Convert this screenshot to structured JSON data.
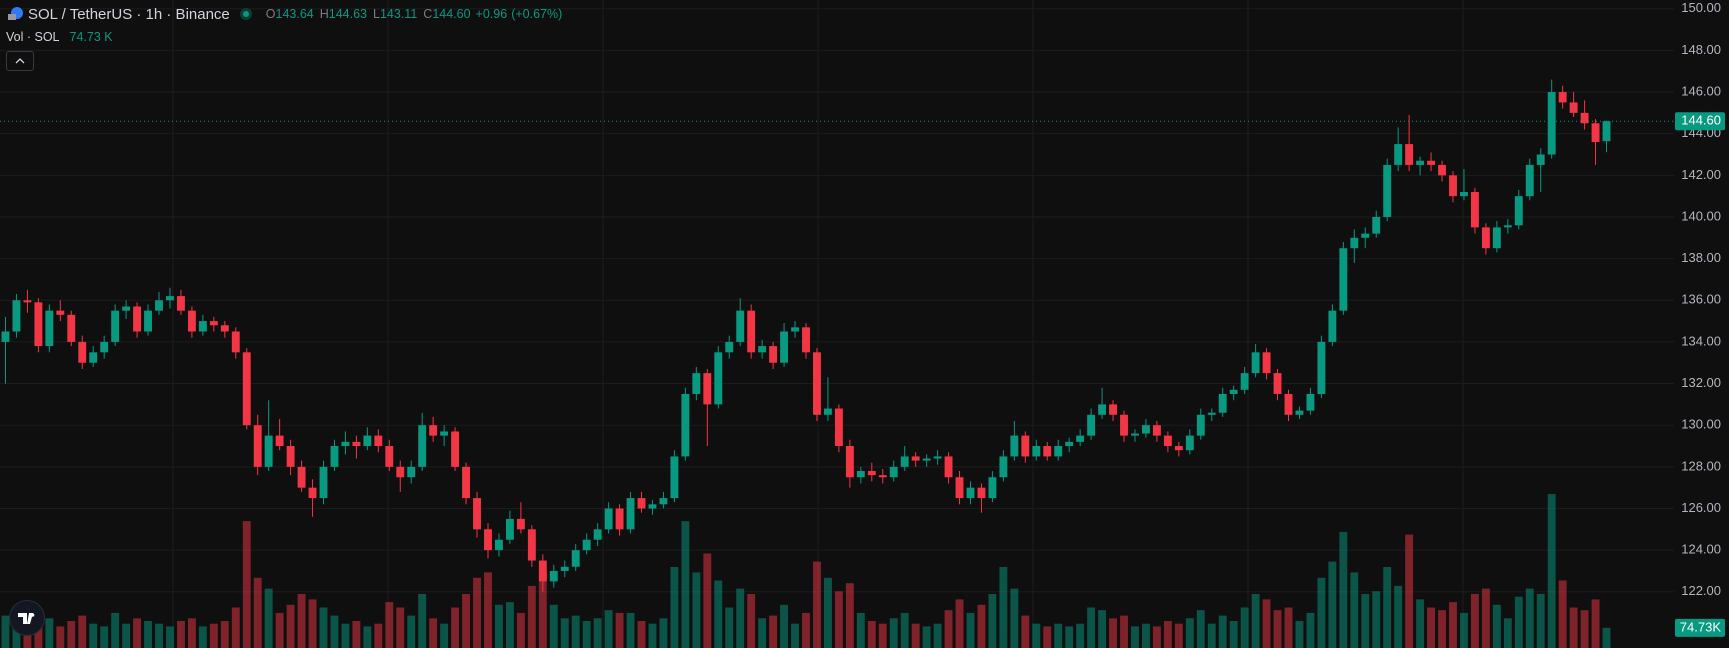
{
  "chart_data": {
    "type": "candlestick",
    "title": "SOL / TetherUS · 1h · Binance",
    "ohlc_legend": [
      {
        "label": "O",
        "value": 143.64
      },
      {
        "label": "H",
        "value": 144.63
      },
      {
        "label": "L",
        "value": 143.11
      },
      {
        "label": "C",
        "value": 144.6,
        "value_label": "144.60"
      }
    ],
    "change": {
      "value": 0.96,
      "label": "+0.96"
    },
    "change_pct": {
      "value": 0.67,
      "label": "(+0.67%)"
    },
    "volume_title": "Vol · SOL",
    "last_volume": {
      "value": 74730,
      "label": "74.73 K",
      "axis_label": "74.73K"
    },
    "last_price": {
      "value": 144.6,
      "label": "144.60"
    },
    "up_color": "#089981",
    "down_color": "#f23645",
    "grid": true,
    "ylim": [
      119.3,
      150.42
    ],
    "yticks": [
      {
        "value": 122,
        "label": "122.00"
      },
      {
        "value": 124,
        "label": "124.00"
      },
      {
        "value": 126,
        "label": "126.00"
      },
      {
        "value": 128,
        "label": "128.00"
      },
      {
        "value": 130,
        "label": "130.00"
      },
      {
        "value": 132,
        "label": "132.00"
      },
      {
        "value": 134,
        "label": "134.00"
      },
      {
        "value": 136,
        "label": "136.00"
      },
      {
        "value": 138,
        "label": "138.00"
      },
      {
        "value": 140,
        "label": "140.00"
      },
      {
        "value": 142,
        "label": "142.00"
      },
      {
        "value": 144,
        "label": "144.00"
      },
      {
        "value": 146,
        "label": "146.00"
      },
      {
        "value": 148,
        "label": "148.00"
      },
      {
        "value": 150,
        "label": "150.00"
      }
    ],
    "volume_lim": [
      0,
      2400000
    ],
    "candles": [
      [
        134,
        135.2,
        132,
        134.5,
        120000
      ],
      [
        134.5,
        136.3,
        134.2,
        136,
        150000
      ],
      [
        136,
        136.5,
        135.4,
        135.9,
        90000
      ],
      [
        135.9,
        136.1,
        133.5,
        133.8,
        130000
      ],
      [
        133.8,
        135.8,
        133.5,
        135.5,
        110000
      ],
      [
        135.5,
        136,
        135,
        135.3,
        80000
      ],
      [
        135.3,
        135.5,
        133.8,
        134,
        100000
      ],
      [
        134,
        134.3,
        132.7,
        133,
        120000
      ],
      [
        133,
        133.8,
        132.8,
        133.5,
        90000
      ],
      [
        133.5,
        134.3,
        133.2,
        134,
        80000
      ],
      [
        134,
        135.8,
        133.8,
        135.5,
        130000
      ],
      [
        135.5,
        136,
        135.1,
        135.7,
        90000
      ],
      [
        135.7,
        135.9,
        134.2,
        134.5,
        110000
      ],
      [
        134.5,
        135.8,
        134.3,
        135.5,
        100000
      ],
      [
        135.5,
        136.4,
        135.3,
        136,
        90000
      ],
      [
        136,
        136.6,
        135.6,
        136.2,
        80000
      ],
      [
        136.2,
        136.5,
        135.3,
        135.5,
        100000
      ],
      [
        135.5,
        135.7,
        134.2,
        134.5,
        110000
      ],
      [
        134.5,
        135.3,
        134.3,
        135,
        80000
      ],
      [
        135,
        135.2,
        134.5,
        134.8,
        90000
      ],
      [
        134.8,
        135,
        134.2,
        134.5,
        100000
      ],
      [
        134.5,
        134.7,
        133.2,
        133.5,
        150000
      ],
      [
        133.5,
        133.7,
        129.8,
        130,
        470000
      ],
      [
        130,
        130.5,
        127.6,
        128,
        260000
      ],
      [
        128,
        131.2,
        127.8,
        129.5,
        220000
      ],
      [
        129.5,
        130.3,
        128.8,
        129,
        130000
      ],
      [
        129,
        129.3,
        127.6,
        128,
        160000
      ],
      [
        128,
        128.3,
        126.8,
        127,
        200000
      ],
      [
        127,
        127.4,
        125.6,
        126.5,
        180000
      ],
      [
        126.5,
        128.3,
        126.2,
        128,
        150000
      ],
      [
        128,
        129.3,
        127.8,
        129,
        120000
      ],
      [
        129,
        129.7,
        128.6,
        129.2,
        90000
      ],
      [
        129.2,
        129.5,
        128.4,
        129,
        100000
      ],
      [
        129,
        129.9,
        128.8,
        129.5,
        80000
      ],
      [
        129.5,
        129.8,
        128.7,
        129,
        90000
      ],
      [
        129,
        129.3,
        127.8,
        128,
        170000
      ],
      [
        128,
        128.3,
        126.8,
        127.5,
        150000
      ],
      [
        127.5,
        128.3,
        127.2,
        128,
        120000
      ],
      [
        128,
        130.6,
        127.8,
        130,
        200000
      ],
      [
        130,
        130.4,
        129.2,
        129.5,
        110000
      ],
      [
        129.5,
        130,
        129,
        129.7,
        90000
      ],
      [
        129.7,
        129.9,
        127.8,
        128,
        150000
      ],
      [
        128,
        128.2,
        126.2,
        126.5,
        200000
      ],
      [
        126.5,
        126.8,
        124.6,
        125,
        260000
      ],
      [
        125,
        125.3,
        123.6,
        124,
        280000
      ],
      [
        124,
        124.8,
        123.7,
        124.5,
        160000
      ],
      [
        124.5,
        125.9,
        124.3,
        125.5,
        170000
      ],
      [
        125.5,
        126.3,
        124.8,
        125,
        130000
      ],
      [
        125,
        125.2,
        123.2,
        123.5,
        230000
      ],
      [
        123.5,
        123.8,
        122,
        122.5,
        280000
      ],
      [
        122.5,
        123.3,
        122.2,
        123,
        160000
      ],
      [
        123,
        123.5,
        122.7,
        123.2,
        110000
      ],
      [
        123.2,
        124.3,
        123,
        124,
        120000
      ],
      [
        124,
        124.8,
        123.8,
        124.5,
        100000
      ],
      [
        124.5,
        125.3,
        124.2,
        125,
        110000
      ],
      [
        125,
        126.3,
        124.8,
        126,
        140000
      ],
      [
        126,
        126.2,
        124.7,
        125,
        130000
      ],
      [
        125,
        126.8,
        124.8,
        126.5,
        130000
      ],
      [
        126.5,
        126.8,
        125.8,
        126,
        100000
      ],
      [
        126,
        126.4,
        125.7,
        126.2,
        90000
      ],
      [
        126.2,
        126.8,
        126,
        126.5,
        110000
      ],
      [
        126.5,
        128.8,
        126.3,
        128.5,
        300000
      ],
      [
        128.5,
        131.8,
        128.3,
        131.5,
        470000
      ],
      [
        131.5,
        132.8,
        131.2,
        132.5,
        280000
      ],
      [
        132.5,
        132.7,
        129,
        131,
        350000
      ],
      [
        131,
        133.8,
        130.8,
        133.5,
        250000
      ],
      [
        133.5,
        134.3,
        133.2,
        134,
        150000
      ],
      [
        134,
        136.1,
        133.8,
        135.5,
        220000
      ],
      [
        135.5,
        135.8,
        133.2,
        133.5,
        200000
      ],
      [
        133.5,
        134.1,
        133.2,
        133.8,
        110000
      ],
      [
        133.8,
        134,
        132.7,
        133,
        120000
      ],
      [
        133,
        134.9,
        132.8,
        134.5,
        160000
      ],
      [
        134.5,
        135,
        134.2,
        134.7,
        90000
      ],
      [
        134.7,
        134.9,
        133.2,
        133.5,
        130000
      ],
      [
        133.5,
        133.7,
        130.2,
        130.5,
        320000
      ],
      [
        130.5,
        132.3,
        130.2,
        130.8,
        260000
      ],
      [
        130.8,
        131,
        128.7,
        129,
        210000
      ],
      [
        129,
        129.3,
        127,
        127.5,
        240000
      ],
      [
        127.5,
        128,
        127.2,
        127.8,
        130000
      ],
      [
        127.8,
        128.2,
        127.3,
        127.6,
        100000
      ],
      [
        127.6,
        127.9,
        127.2,
        127.5,
        90000
      ],
      [
        127.5,
        128.3,
        127.3,
        128,
        110000
      ],
      [
        128,
        129,
        127.8,
        128.5,
        130000
      ],
      [
        128.5,
        128.7,
        128,
        128.3,
        90000
      ],
      [
        128.3,
        128.6,
        128,
        128.4,
        80000
      ],
      [
        128.4,
        128.8,
        128.1,
        128.5,
        90000
      ],
      [
        128.5,
        128.7,
        127.2,
        127.5,
        140000
      ],
      [
        127.5,
        127.8,
        126.2,
        126.5,
        180000
      ],
      [
        126.5,
        127.3,
        126.2,
        127,
        130000
      ],
      [
        127,
        127.2,
        125.8,
        126.5,
        160000
      ],
      [
        126.5,
        127.8,
        126.3,
        127.5,
        200000
      ],
      [
        127.5,
        128.8,
        127.3,
        128.5,
        300000
      ],
      [
        128.5,
        130.2,
        128.3,
        129.5,
        220000
      ],
      [
        129.5,
        129.7,
        128.2,
        128.5,
        120000
      ],
      [
        128.5,
        129.3,
        128.3,
        129,
        90000
      ],
      [
        129,
        129.2,
        128.3,
        128.5,
        80000
      ],
      [
        128.5,
        129.3,
        128.3,
        129,
        90000
      ],
      [
        129,
        129.4,
        128.7,
        129.2,
        80000
      ],
      [
        129.2,
        129.8,
        129,
        129.5,
        90000
      ],
      [
        129.5,
        130.8,
        129.3,
        130.5,
        150000
      ],
      [
        130.5,
        131.8,
        130.3,
        131,
        140000
      ],
      [
        131,
        131.2,
        130.2,
        130.5,
        110000
      ],
      [
        130.5,
        130.7,
        129.2,
        129.5,
        120000
      ],
      [
        129.5,
        129.8,
        129.2,
        129.6,
        80000
      ],
      [
        129.6,
        130.3,
        129.4,
        130,
        90000
      ],
      [
        130,
        130.2,
        129.2,
        129.5,
        80000
      ],
      [
        129.5,
        129.7,
        128.7,
        129,
        100000
      ],
      [
        129,
        129.2,
        128.5,
        128.8,
        90000
      ],
      [
        128.8,
        129.8,
        128.6,
        129.5,
        110000
      ],
      [
        129.5,
        130.8,
        129.3,
        130.5,
        140000
      ],
      [
        130.5,
        130.8,
        130.2,
        130.6,
        90000
      ],
      [
        130.6,
        131.8,
        130.4,
        131.5,
        120000
      ],
      [
        131.5,
        131.9,
        131.2,
        131.7,
        100000
      ],
      [
        131.7,
        132.8,
        131.5,
        132.5,
        150000
      ],
      [
        132.5,
        133.9,
        132.3,
        133.5,
        200000
      ],
      [
        133.5,
        133.7,
        132.2,
        132.5,
        180000
      ],
      [
        132.5,
        132.7,
        131.2,
        131.5,
        140000
      ],
      [
        131.5,
        131.7,
        130.2,
        130.5,
        150000
      ],
      [
        130.5,
        130.9,
        130.3,
        130.7,
        100000
      ],
      [
        130.7,
        131.8,
        130.5,
        131.5,
        130000
      ],
      [
        131.5,
        134.3,
        131.3,
        134,
        260000
      ],
      [
        134,
        135.8,
        133.8,
        135.5,
        320000
      ],
      [
        135.5,
        138.8,
        135.3,
        138.5,
        430000
      ],
      [
        138.5,
        139.4,
        137.8,
        139,
        280000
      ],
      [
        139,
        139.5,
        138.5,
        139.2,
        200000
      ],
      [
        139.2,
        140.3,
        139,
        140,
        210000
      ],
      [
        140,
        142.8,
        139.8,
        142.5,
        300000
      ],
      [
        142.5,
        144.3,
        142.2,
        143.5,
        230000
      ],
      [
        143.5,
        144.9,
        142.2,
        142.5,
        420000
      ],
      [
        142.5,
        142.9,
        142,
        142.7,
        180000
      ],
      [
        142.7,
        143.1,
        142.2,
        142.5,
        150000
      ],
      [
        142.5,
        142.7,
        141.7,
        142,
        140000
      ],
      [
        142,
        142.2,
        140.7,
        141,
        170000
      ],
      [
        141,
        142.3,
        140.8,
        141.2,
        130000
      ],
      [
        141.2,
        141.4,
        139.2,
        139.5,
        200000
      ],
      [
        139.5,
        139.7,
        138.2,
        138.5,
        220000
      ],
      [
        138.5,
        139.8,
        138.3,
        139.5,
        160000
      ],
      [
        139.5,
        139.9,
        139.2,
        139.6,
        110000
      ],
      [
        139.6,
        141.3,
        139.4,
        141,
        190000
      ],
      [
        141,
        142.8,
        140.8,
        142.5,
        220000
      ],
      [
        142.5,
        143.3,
        141.2,
        143,
        200000
      ],
      [
        143,
        146.6,
        142.8,
        146,
        570000
      ],
      [
        146,
        146.3,
        145.2,
        145.5,
        250000
      ],
      [
        145.5,
        146,
        144.8,
        145,
        150000
      ],
      [
        145,
        145.6,
        144.2,
        144.5,
        140000
      ],
      [
        144.5,
        144.7,
        142.5,
        143.6,
        180000
      ],
      [
        143.64,
        144.63,
        143.11,
        144.6,
        74730
      ]
    ]
  }
}
